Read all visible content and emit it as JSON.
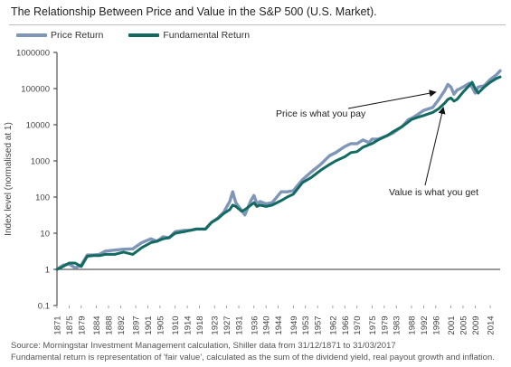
{
  "title": "The Relationship Between Price and Value in the S&P 500 (U.S. Market).",
  "footer": {
    "line1": "Source: Morningstar Investment Management calculation, Shiller data from 31/12/1871 to 31/03/2017",
    "line2": "Fundamental return is representation of 'fair value', calculated as the sum of the dividend yield, real payout growth and inflation."
  },
  "colors": {
    "price": "#7f96b8",
    "fundamental": "#126a60",
    "axis": "#333333"
  },
  "chart_data": {
    "type": "line",
    "title": "The Relationship Between Price and Value in the S&P 500 (U.S. Market).",
    "xlabel": "",
    "ylabel": "Index level (normalised at 1)",
    "yscale": "log",
    "ylim": [
      0.1,
      1000000
    ],
    "xlim": [
      1871,
      2017.25
    ],
    "y_ticks": [
      0.1,
      1,
      10,
      100,
      1000,
      10000,
      100000,
      1000000
    ],
    "y_tick_labels": [
      "0.1",
      "1",
      "10",
      "100",
      "1000",
      "10000",
      "100000",
      "1000000"
    ],
    "x_ticks": [
      1871,
      1875,
      1879,
      1884,
      1888,
      1892,
      1897,
      1901,
      1905,
      1910,
      1914,
      1918,
      1923,
      1927,
      1931,
      1936,
      1940,
      1944,
      1949,
      1953,
      1957,
      1962,
      1966,
      1970,
      1975,
      1979,
      1983,
      1988,
      1992,
      1996,
      2001,
      2005,
      2009,
      2014
    ],
    "x_tick_labels": [
      "1871",
      "1875",
      "1879",
      "1884",
      "1888",
      "1892",
      "1897",
      "1901",
      "1905",
      "1910",
      "1914",
      "1918",
      "1923",
      "1927",
      "1931",
      "1936",
      "1940",
      "1944",
      "1949",
      "1953",
      "1957",
      "1962",
      "1966",
      "1970",
      "1975",
      "1979",
      "1983",
      "1988",
      "1992",
      "1996",
      "2001",
      "2005",
      "2009",
      "2014"
    ],
    "legend_position": "top-left",
    "grid": false,
    "series": [
      {
        "name": "Price Return",
        "x": [
          1871,
          1873,
          1875,
          1877,
          1879,
          1881,
          1883,
          1885,
          1887,
          1890,
          1893,
          1896,
          1899,
          1902,
          1904,
          1906,
          1908,
          1910,
          1913,
          1915,
          1917,
          1920,
          1922,
          1924,
          1926,
          1928,
          1929,
          1930,
          1932,
          1933,
          1935,
          1936,
          1937,
          1938,
          1940,
          1942,
          1945,
          1947,
          1949,
          1952,
          1955,
          1958,
          1961,
          1963,
          1966,
          1968,
          1970,
          1972,
          1974,
          1975,
          1977,
          1980,
          1982,
          1985,
          1987,
          1988,
          1990,
          1992,
          1995,
          1997,
          1999,
          2000,
          2001,
          2002,
          2003,
          2005,
          2007,
          2008,
          2009,
          2010,
          2012,
          2014,
          2016,
          2017.25
        ],
        "y": [
          1,
          1.3,
          1.4,
          1.1,
          1.3,
          2.5,
          2.5,
          2.6,
          3.2,
          3.4,
          3.6,
          3.7,
          5.5,
          7,
          6,
          8,
          7.5,
          11,
          12,
          12,
          13,
          13,
          20,
          26,
          38,
          75,
          140,
          70,
          42,
          32,
          80,
          110,
          65,
          75,
          65,
          70,
          140,
          140,
          150,
          300,
          500,
          800,
          1400,
          1700,
          2500,
          3000,
          3000,
          3800,
          3200,
          4000,
          4000,
          5000,
          6000,
          9000,
          14000,
          15000,
          19000,
          25000,
          30000,
          50000,
          90000,
          130000,
          110000,
          70000,
          90000,
          110000,
          140000,
          110000,
          75000,
          110000,
          120000,
          180000,
          240000,
          310000
        ]
      },
      {
        "name": "Fundamental Return",
        "x": [
          1871,
          1873,
          1875,
          1877,
          1879,
          1881,
          1883,
          1885,
          1887,
          1890,
          1893,
          1896,
          1899,
          1902,
          1904,
          1906,
          1908,
          1910,
          1913,
          1915,
          1917,
          1920,
          1922,
          1924,
          1926,
          1928,
          1929,
          1930,
          1932,
          1933,
          1935,
          1936,
          1937,
          1938,
          1940,
          1942,
          1945,
          1947,
          1949,
          1952,
          1955,
          1958,
          1961,
          1963,
          1966,
          1968,
          1970,
          1972,
          1974,
          1975,
          1977,
          1980,
          1982,
          1985,
          1987,
          1988,
          1990,
          1992,
          1995,
          1997,
          1999,
          2000,
          2001,
          2002,
          2003,
          2005,
          2007,
          2008,
          2009,
          2010,
          2012,
          2014,
          2016,
          2017.25
        ],
        "y": [
          1,
          1.2,
          1.5,
          1.5,
          1.2,
          2.3,
          2.4,
          2.4,
          2.6,
          2.6,
          3,
          2.6,
          4,
          5.5,
          6,
          7,
          7.5,
          10,
          11,
          12,
          13,
          13,
          20,
          25,
          35,
          45,
          60,
          55,
          40,
          45,
          60,
          70,
          55,
          60,
          55,
          60,
          80,
          100,
          120,
          250,
          350,
          550,
          800,
          1000,
          1300,
          1700,
          1800,
          2400,
          2800,
          3000,
          3800,
          5000,
          6500,
          9000,
          12000,
          14000,
          16000,
          18000,
          22000,
          28000,
          40000,
          50000,
          55000,
          45000,
          50000,
          80000,
          120000,
          150000,
          100000,
          75000,
          110000,
          150000,
          190000,
          210000
        ]
      }
    ],
    "annotations": [
      {
        "text": "Price is what you pay",
        "points_to": {
          "x": 1996,
          "y": 80000
        }
      },
      {
        "text": "Value is what you get",
        "points_to": {
          "x": 1998.5,
          "y": 30000
        }
      }
    ],
    "reference_line": {
      "y": 1
    }
  }
}
